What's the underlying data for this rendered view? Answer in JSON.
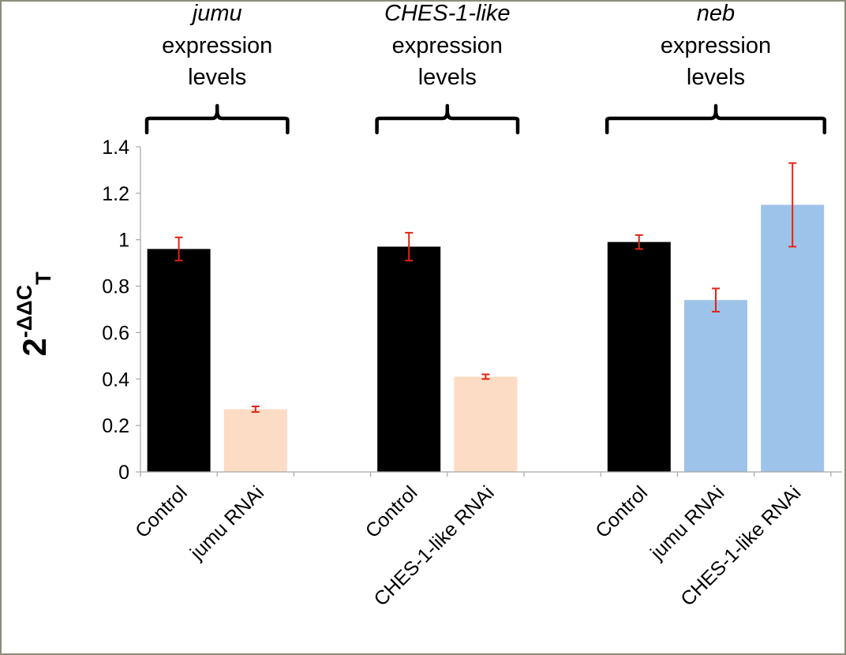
{
  "chart_data": {
    "type": "bar",
    "ylabel": "2-ΔΔCT",
    "ylabel_parts": {
      "base": "2",
      "exponent": "-ΔΔC",
      "subscript": "T"
    },
    "ylim": [
      0,
      1.4
    ],
    "yticks": [
      "0",
      "0.2",
      "0.4",
      "0.6",
      "0.8",
      "1",
      "1.2",
      "1.4"
    ],
    "grid": false,
    "groups": [
      {
        "title_italic": "jumu",
        "title_lines": [
          "expression",
          "levels"
        ],
        "bars": [
          {
            "label": "Control",
            "value": 0.96,
            "error": 0.05,
            "color": "#000000"
          },
          {
            "label": "jumu RNAi",
            "value": 0.27,
            "error": 0.012,
            "color": "#fcdcc4"
          }
        ]
      },
      {
        "title_italic": "CHES-1-like",
        "title_lines": [
          "expression",
          "levels"
        ],
        "bars": [
          {
            "label": "Control",
            "value": 0.97,
            "error": 0.06,
            "color": "#000000"
          },
          {
            "label": "CHES-1-like RNAi",
            "value": 0.41,
            "error": 0.01,
            "color": "#fcdcc4"
          }
        ]
      },
      {
        "title_italic": "neb",
        "title_lines": [
          "expression",
          "levels"
        ],
        "bars": [
          {
            "label": "Control",
            "value": 0.99,
            "error": 0.03,
            "color": "#000000"
          },
          {
            "label": "jumu RNAi",
            "value": 0.74,
            "error": 0.05,
            "color": "#9ec3ea"
          },
          {
            "label": "CHES-1-like RNAi",
            "value": 1.15,
            "error": 0.18,
            "color": "#9ec3ea"
          }
        ]
      }
    ],
    "error_bar_color": "#e32316"
  }
}
